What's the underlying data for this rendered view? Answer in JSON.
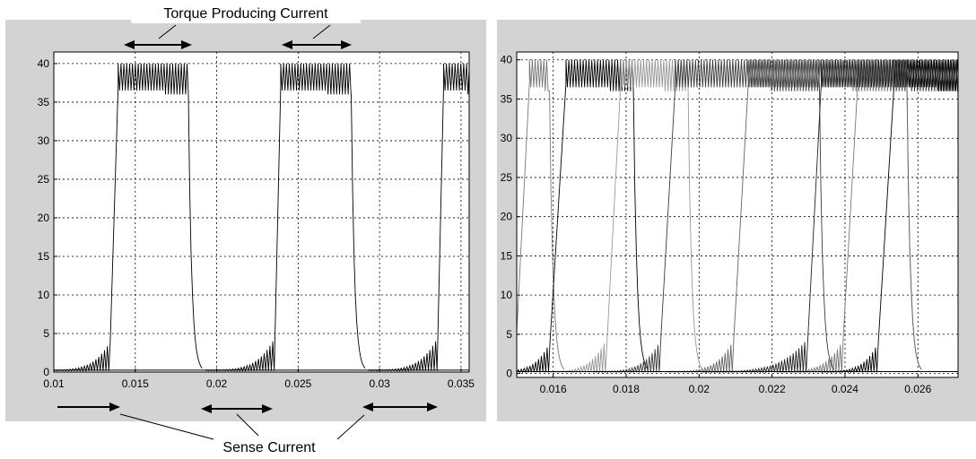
{
  "annotations": {
    "top_label": "Torque Producing Current",
    "bottom_label": "Sense Current"
  },
  "chart_data": [
    {
      "type": "line",
      "panel": "left",
      "xlim": [
        0.01,
        0.0355
      ],
      "ylim": [
        0,
        41.5
      ],
      "grid": true,
      "xticks": [
        "0.01",
        "0.015",
        "0.02",
        "0.025",
        "0.03",
        "0.035"
      ],
      "yticks": [
        "0",
        "5",
        "10",
        "15",
        "20",
        "25",
        "30",
        "35",
        "40"
      ],
      "series": [
        {
          "color": "#000000",
          "pulses": [
            {
              "start": 0.0095,
              "ramp_end": 0.01395,
              "high_end": 0.01826,
              "drop_end": 0.0191
            },
            {
              "start": 0.0193,
              "ramp_end": 0.02393,
              "high_end": 0.02826,
              "drop_end": 0.0291
            },
            {
              "start": 0.0293,
              "ramp_end": 0.03393,
              "high_end": 0.0361,
              "drop_end": 0.0362
            }
          ],
          "high_level": [
            36,
            40
          ],
          "dense_period_fraction": 0.35,
          "sense_level_max": 4,
          "rise_time": 0.0004,
          "fall_time": 0.0006
        }
      ]
    },
    {
      "type": "line",
      "panel": "right",
      "xlim": [
        0.015,
        0.0271
      ],
      "ylim": [
        -0.5,
        41
      ],
      "grid": true,
      "xticks": [
        "0.016",
        "0.018",
        "0.02",
        "0.022",
        "0.024",
        "0.026"
      ],
      "yticks": [
        "0",
        "5",
        "10",
        "15",
        "20",
        "25",
        "30",
        "35",
        "40"
      ],
      "series": [
        {
          "color": "#777777",
          "pulses": [
            {
              "start": 0.0131,
              "ramp_end": 0.01535,
              "high_end": 0.0159,
              "drop_end": 0.0163
            },
            {
              "start": 0.0221,
              "ramp_end": 0.02435,
              "high_end": 0.0257,
              "drop_end": 0.0261
            }
          ]
        },
        {
          "color": "#000000",
          "pulses": [
            {
              "start": 0.0143,
              "ramp_end": 0.01635,
              "high_end": 0.0182,
              "drop_end": 0.0186
            },
            {
              "start": 0.0233,
              "ramp_end": 0.02535,
              "high_end": 0.0272,
              "drop_end": 0.0275
            }
          ]
        },
        {
          "color": "#999999",
          "pulses": [
            {
              "start": 0.0157,
              "ramp_end": 0.01785,
              "high_end": 0.0197,
              "drop_end": 0.0201
            }
          ]
        },
        {
          "color": "#3a3a3a",
          "pulses": [
            {
              "start": 0.0171,
              "ramp_end": 0.01935,
              "high_end": 0.0233,
              "drop_end": 0.0237
            }
          ]
        },
        {
          "color": "#666666",
          "pulses": [
            {
              "start": 0.0191,
              "ramp_end": 0.02135,
              "high_end": 0.0257,
              "drop_end": 0.0261
            }
          ]
        },
        {
          "color": "#222222",
          "pulses": [
            {
              "start": 0.0201,
              "ramp_end": 0.02335,
              "high_end": 0.0271,
              "drop_end": 0.0272
            }
          ]
        }
      ],
      "high_level": [
        36,
        40
      ],
      "dense_period_fraction": 0.35,
      "sense_level_max": 4,
      "rise_time": 0.0004,
      "fall_time": 0.0004
    }
  ],
  "colors": {
    "panel_background": "#d3d3d3",
    "plot_background": "#ffffff",
    "grid": "#000000"
  }
}
